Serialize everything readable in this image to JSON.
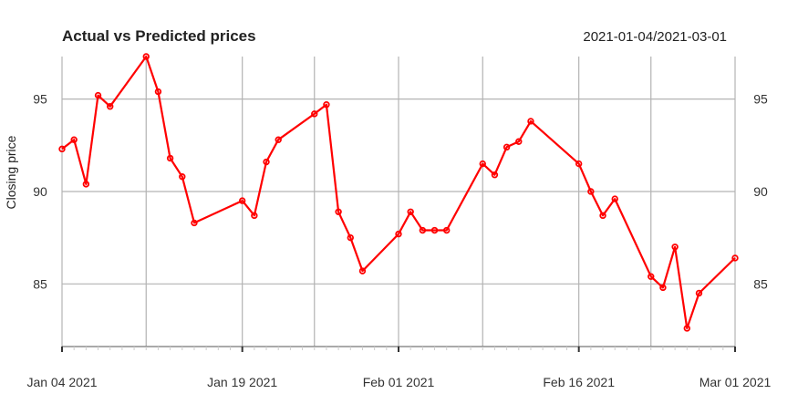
{
  "chart_data": {
    "type": "line",
    "title": "Actual vs Predicted prices",
    "date_range": "2021-01-04/2021-03-01",
    "ylabel": "Closing price",
    "xlabel": "",
    "ylim": [
      82.5,
      97.3
    ],
    "xlim": [
      "2021-01-04",
      "2021-03-01"
    ],
    "y_ticks": [
      85,
      90,
      95
    ],
    "x_ticks": [
      {
        "date": "2021-01-04",
        "label": "Jan 04 2021"
      },
      {
        "date": "2021-01-19",
        "label": "Jan 19 2021"
      },
      {
        "date": "2021-02-01",
        "label": "Feb 01 2021"
      },
      {
        "date": "2021-02-16",
        "label": "Feb 16 2021"
      },
      {
        "date": "2021-03-01",
        "label": "Mar 01 2021"
      }
    ],
    "grid": true,
    "series": [
      {
        "color": "#ff0000",
        "points": [
          {
            "x": "2021-01-04",
            "y": 92.3
          },
          {
            "x": "2021-01-05",
            "y": 92.8
          },
          {
            "x": "2021-01-06",
            "y": 90.4
          },
          {
            "x": "2021-01-07",
            "y": 95.2
          },
          {
            "x": "2021-01-08",
            "y": 94.6
          },
          {
            "x": "2021-01-11",
            "y": 97.3
          },
          {
            "x": "2021-01-12",
            "y": 95.4
          },
          {
            "x": "2021-01-13",
            "y": 91.8
          },
          {
            "x": "2021-01-14",
            "y": 90.8
          },
          {
            "x": "2021-01-15",
            "y": 88.3
          },
          {
            "x": "2021-01-19",
            "y": 89.5
          },
          {
            "x": "2021-01-20",
            "y": 88.7
          },
          {
            "x": "2021-01-21",
            "y": 91.6
          },
          {
            "x": "2021-01-22",
            "y": 92.8
          },
          {
            "x": "2021-01-25",
            "y": 94.2
          },
          {
            "x": "2021-01-26",
            "y": 94.7
          },
          {
            "x": "2021-01-27",
            "y": 88.9
          },
          {
            "x": "2021-01-28",
            "y": 87.5
          },
          {
            "x": "2021-01-29",
            "y": 85.7
          },
          {
            "x": "2021-02-01",
            "y": 87.7
          },
          {
            "x": "2021-02-02",
            "y": 88.9
          },
          {
            "x": "2021-02-03",
            "y": 87.9
          },
          {
            "x": "2021-02-04",
            "y": 87.9
          },
          {
            "x": "2021-02-05",
            "y": 87.9
          },
          {
            "x": "2021-02-08",
            "y": 91.5
          },
          {
            "x": "2021-02-09",
            "y": 90.9
          },
          {
            "x": "2021-02-10",
            "y": 92.4
          },
          {
            "x": "2021-02-11",
            "y": 92.7
          },
          {
            "x": "2021-02-12",
            "y": 93.8
          },
          {
            "x": "2021-02-16",
            "y": 91.5
          },
          {
            "x": "2021-02-17",
            "y": 90.0
          },
          {
            "x": "2021-02-18",
            "y": 88.7
          },
          {
            "x": "2021-02-19",
            "y": 89.6
          },
          {
            "x": "2021-02-22",
            "y": 85.4
          },
          {
            "x": "2021-02-23",
            "y": 84.8
          },
          {
            "x": "2021-02-24",
            "y": 87.0
          },
          {
            "x": "2021-02-25",
            "y": 82.6
          },
          {
            "x": "2021-02-26",
            "y": 84.5
          },
          {
            "x": "2021-03-01",
            "y": 86.4
          }
        ]
      }
    ]
  }
}
